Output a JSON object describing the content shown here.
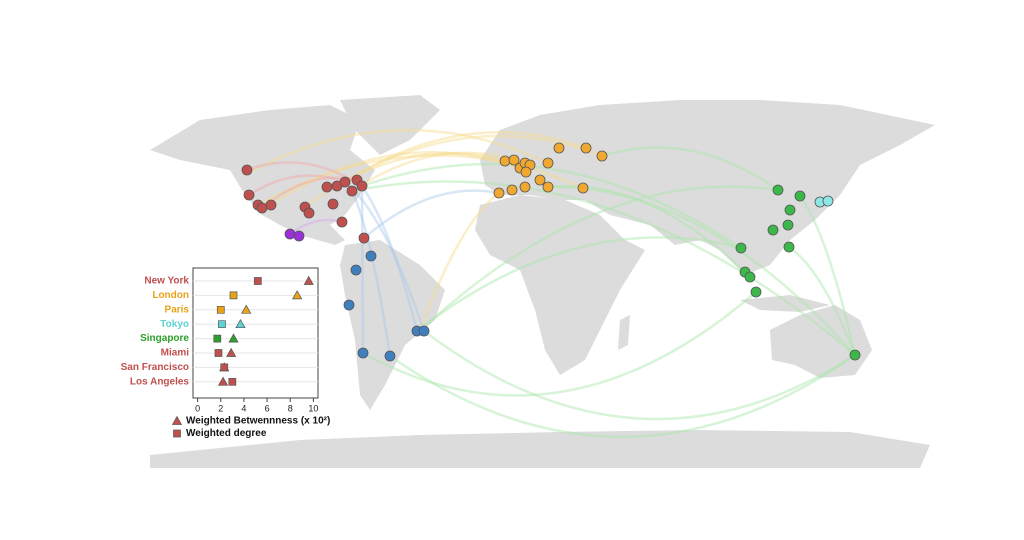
{
  "chart_data": {
    "type": "dot",
    "categories": [
      "New York",
      "London",
      "Paris",
      "Tokyo",
      "Singapore",
      "Miami",
      "San Francisco",
      "Los Angeles"
    ],
    "category_colors": [
      "#c0504d",
      "#e8a317",
      "#e8a317",
      "#5fd3d3",
      "#2ca02c",
      "#c0504d",
      "#c0504d",
      "#c0504d"
    ],
    "series": [
      {
        "name": "Weighted Betwennness (x 10²)",
        "marker": "triangle",
        "color": "#c0504d",
        "values": [
          9.6,
          8.6,
          4.2,
          3.7,
          3.1,
          2.9,
          2.3,
          2.2
        ]
      },
      {
        "name": "Weighted degree",
        "marker": "square",
        "color": "#c0504d",
        "values": [
          5.2,
          3.1,
          2.0,
          2.1,
          1.7,
          1.8,
          2.3,
          3.0
        ]
      }
    ],
    "xlim": [
      -0.4,
      10.4
    ],
    "xticks": [
      0,
      2,
      4,
      6,
      8,
      10
    ]
  }
}
